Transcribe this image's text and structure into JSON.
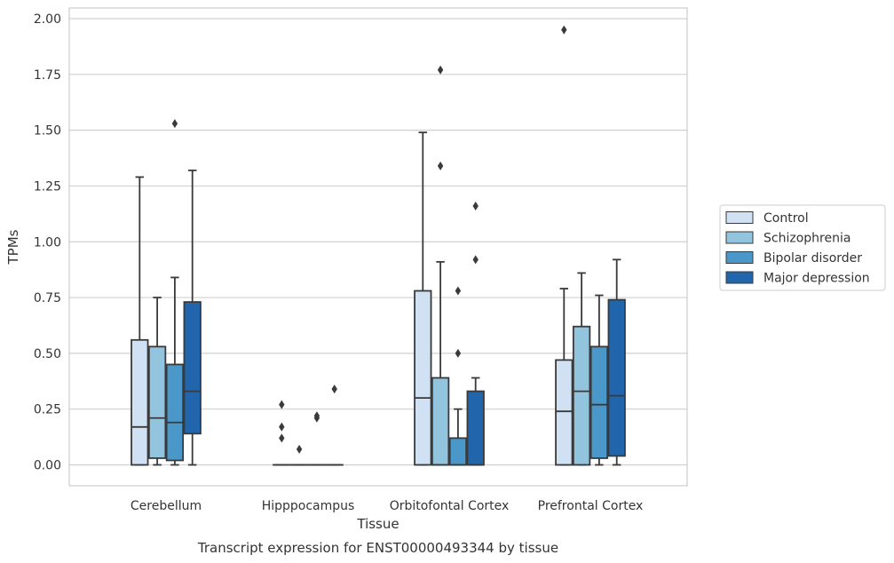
{
  "chart_data": {
    "type": "boxplot",
    "title": "Transcript expression for ENST00000493344 by tissue",
    "xlabel": "Tissue",
    "ylabel": "TPMs",
    "ylim": [
      -0.1,
      2.05
    ],
    "yticks": [
      "0.00",
      "0.25",
      "0.50",
      "0.75",
      "1.00",
      "1.25",
      "1.50",
      "1.75",
      "2.00"
    ],
    "grid": true,
    "legend_position": "right",
    "categories": [
      "Cerebellum",
      "Hipppocampus",
      "Orbitofontal Cortex",
      "Prefrontal Cortex"
    ],
    "series": [
      {
        "name": "Control",
        "color": "#cfe1f2",
        "boxes": [
          {
            "whislo": 0.0,
            "q1": 0.0,
            "med": 0.17,
            "q3": 0.56,
            "whishi": 1.29,
            "fliers": []
          },
          {
            "whislo": 0.0,
            "q1": 0.0,
            "med": 0.0,
            "q3": 0.0,
            "whishi": 0.0,
            "fliers": [
              0.27,
              0.17,
              0.12
            ]
          },
          {
            "whislo": 0.0,
            "q1": 0.0,
            "med": 0.3,
            "q3": 0.78,
            "whishi": 1.49,
            "fliers": []
          },
          {
            "whislo": 0.0,
            "q1": 0.0,
            "med": 0.24,
            "q3": 0.47,
            "whishi": 0.79,
            "fliers": [
              1.95
            ]
          }
        ]
      },
      {
        "name": "Schizophrenia",
        "color": "#93c4de",
        "boxes": [
          {
            "whislo": 0.0,
            "q1": 0.03,
            "med": 0.21,
            "q3": 0.53,
            "whishi": 0.75,
            "fliers": []
          },
          {
            "whislo": 0.0,
            "q1": 0.0,
            "med": 0.0,
            "q3": 0.0,
            "whishi": 0.0,
            "fliers": [
              0.07
            ]
          },
          {
            "whislo": 0.0,
            "q1": 0.0,
            "med": 0.0,
            "q3": 0.39,
            "whishi": 0.91,
            "fliers": [
              1.77,
              1.34
            ]
          },
          {
            "whislo": 0.0,
            "q1": 0.0,
            "med": 0.33,
            "q3": 0.62,
            "whishi": 0.86,
            "fliers": []
          }
        ]
      },
      {
        "name": "Bipolar disorder",
        "color": "#4a98c9",
        "boxes": [
          {
            "whislo": 0.0,
            "q1": 0.02,
            "med": 0.19,
            "q3": 0.45,
            "whishi": 0.84,
            "fliers": [
              1.53
            ]
          },
          {
            "whislo": 0.0,
            "q1": 0.0,
            "med": 0.0,
            "q3": 0.0,
            "whishi": 0.0,
            "fliers": [
              0.22,
              0.21
            ]
          },
          {
            "whislo": 0.0,
            "q1": 0.0,
            "med": 0.0,
            "q3": 0.12,
            "whishi": 0.25,
            "fliers": [
              0.78,
              0.5
            ]
          },
          {
            "whislo": 0.0,
            "q1": 0.03,
            "med": 0.27,
            "q3": 0.53,
            "whishi": 0.76,
            "fliers": []
          }
        ]
      },
      {
        "name": "Major depression",
        "color": "#2166ac",
        "boxes": [
          {
            "whislo": 0.0,
            "q1": 0.14,
            "med": 0.33,
            "q3": 0.73,
            "whishi": 1.32,
            "fliers": []
          },
          {
            "whislo": 0.0,
            "q1": 0.0,
            "med": 0.0,
            "q3": 0.0,
            "whishi": 0.0,
            "fliers": [
              0.34
            ]
          },
          {
            "whislo": 0.0,
            "q1": 0.0,
            "med": 0.0,
            "q3": 0.33,
            "whishi": 0.39,
            "fliers": [
              1.16,
              0.92
            ]
          },
          {
            "whislo": 0.0,
            "q1": 0.04,
            "med": 0.31,
            "q3": 0.74,
            "whishi": 0.92,
            "fliers": []
          }
        ]
      }
    ]
  }
}
